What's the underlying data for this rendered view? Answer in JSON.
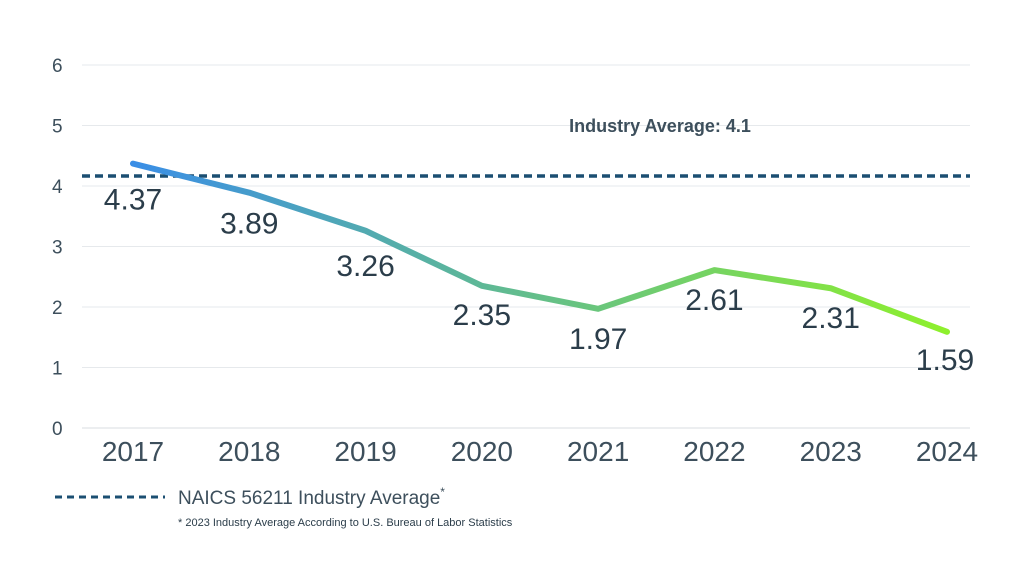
{
  "chart_data": {
    "type": "line",
    "categories": [
      "2017",
      "2018",
      "2019",
      "2020",
      "2021",
      "2022",
      "2023",
      "2024"
    ],
    "y_ticks": [
      "0",
      "1",
      "2",
      "3",
      "4",
      "5",
      "6"
    ],
    "ylim": [
      0,
      6
    ],
    "grid": true,
    "series": [
      {
        "values": [
          4.37,
          3.89,
          3.26,
          2.35,
          1.97,
          2.61,
          2.31,
          1.59
        ],
        "labels": [
          "4.37",
          "3.89",
          "3.26",
          "2.35",
          "1.97",
          "2.61",
          "2.31",
          "1.59"
        ],
        "gradient_colors": [
          "#3a8ee6",
          "#8ef02c"
        ]
      }
    ],
    "reference_line": {
      "value": 4.1,
      "label": "Industry Average: 4.1",
      "color": "#1b4f72",
      "style": "dashed"
    },
    "legend": {
      "placement": "bottom-left",
      "text": "NAICS 56211 Industry Average",
      "marker": "*"
    },
    "footnote": "* 2023 Industry Average According to U.S. Bureau of Labor Statistics"
  }
}
